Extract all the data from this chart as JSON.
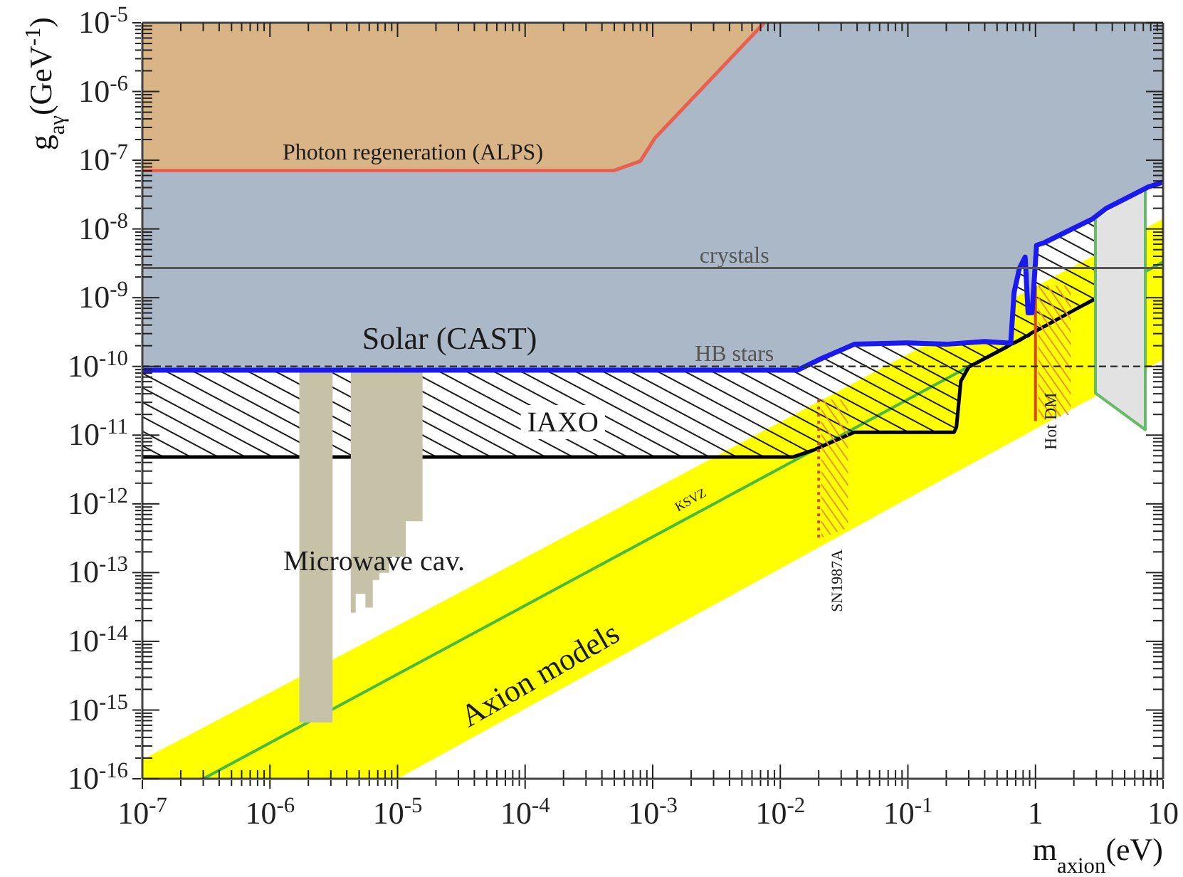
{
  "chart_data": {
    "type": "area",
    "log": "xy",
    "xlabel": "m$_{axion}$(eV)",
    "ylabel": "g$_{aγ}$(GeV$^{-1}$)",
    "xlim": [
      1e-07,
      10
    ],
    "ylim": [
      1e-16,
      1e-05
    ],
    "xticks": [
      {
        "value": 1e-07,
        "label": "10$^{-7}$"
      },
      {
        "value": 2e-07,
        "label": null
      },
      {
        "value": 3e-07,
        "label": null
      },
      {
        "value": 4e-07,
        "label": null
      },
      {
        "value": 5e-07,
        "label": null
      },
      {
        "value": 6e-07,
        "label": null
      },
      {
        "value": 7e-07,
        "label": null
      },
      {
        "value": 8e-07,
        "label": null
      },
      {
        "value": 9e-07,
        "label": null
      },
      {
        "value": 1e-06,
        "label": "10$^{-6}$"
      },
      {
        "value": 2e-06,
        "label": null
      },
      {
        "value": 3e-06,
        "label": null
      },
      {
        "value": 4e-06,
        "label": null
      },
      {
        "value": 5e-06,
        "label": null
      },
      {
        "value": 6e-06,
        "label": null
      },
      {
        "value": 7e-06,
        "label": null
      },
      {
        "value": 8e-06,
        "label": null
      },
      {
        "value": 9e-06,
        "label": null
      },
      {
        "value": 1e-05,
        "label": "10$^{-5}$"
      },
      {
        "value": 2e-05,
        "label": null
      },
      {
        "value": 3e-05,
        "label": null
      },
      {
        "value": 4e-05,
        "label": null
      },
      {
        "value": 5e-05,
        "label": null
      },
      {
        "value": 6e-05,
        "label": null
      },
      {
        "value": 7e-05,
        "label": null
      },
      {
        "value": 8e-05,
        "label": null
      },
      {
        "value": 9e-05,
        "label": null
      },
      {
        "value": 0.0001,
        "label": "10$^{-4}$"
      },
      {
        "value": 0.0002,
        "label": null
      },
      {
        "value": 0.0003,
        "label": null
      },
      {
        "value": 0.0004,
        "label": null
      },
      {
        "value": 0.0005,
        "label": null
      },
      {
        "value": 0.0006,
        "label": null
      },
      {
        "value": 0.0007,
        "label": null
      },
      {
        "value": 0.0008,
        "label": null
      },
      {
        "value": 0.0009,
        "label": null
      },
      {
        "value": 0.001,
        "label": "10$^{-3}$"
      },
      {
        "value": 0.002,
        "label": null
      },
      {
        "value": 0.003,
        "label": null
      },
      {
        "value": 0.004,
        "label": null
      },
      {
        "value": 0.005,
        "label": null
      },
      {
        "value": 0.006,
        "label": null
      },
      {
        "value": 0.007,
        "label": null
      },
      {
        "value": 0.008,
        "label": null
      },
      {
        "value": 0.009,
        "label": null
      },
      {
        "value": 0.01,
        "label": "10$^{-2}$"
      },
      {
        "value": 0.02,
        "label": null
      },
      {
        "value": 0.03,
        "label": null
      },
      {
        "value": 0.04,
        "label": null
      },
      {
        "value": 0.05,
        "label": null
      },
      {
        "value": 0.06,
        "label": null
      },
      {
        "value": 0.07,
        "label": null
      },
      {
        "value": 0.08,
        "label": null
      },
      {
        "value": 0.09,
        "label": null
      },
      {
        "value": 0.1,
        "label": "10$^{-1}$"
      },
      {
        "value": 0.2,
        "label": null
      },
      {
        "value": 0.3,
        "label": null
      },
      {
        "value": 0.4,
        "label": null
      },
      {
        "value": 0.5,
        "label": null
      },
      {
        "value": 0.6,
        "label": null
      },
      {
        "value": 0.7,
        "label": null
      },
      {
        "value": 0.8,
        "label": null
      },
      {
        "value": 0.9,
        "label": null
      },
      1,
      {
        "value": 2,
        "label": null
      },
      {
        "value": 3,
        "label": null
      },
      {
        "value": 4,
        "label": null
      },
      {
        "value": 5,
        "label": null
      },
      {
        "value": 6,
        "label": null
      },
      {
        "value": 7,
        "label": null
      },
      {
        "value": 8,
        "label": null
      },
      {
        "value": 9,
        "label": null
      },
      10
    ],
    "yticks": [
      {
        "value": 1e-16,
        "label": "10$^{-16}$"
      },
      {
        "value": 2e-16,
        "label": null
      },
      {
        "value": 3e-16,
        "label": null
      },
      {
        "value": 4e-16,
        "label": null
      },
      {
        "value": 5e-16,
        "label": null
      },
      {
        "value": 6e-16,
        "label": null
      },
      {
        "value": 7e-16,
        "label": null
      },
      {
        "value": 8e-16,
        "label": null
      },
      {
        "value": 9e-16,
        "label": null
      },
      {
        "value": 1e-15,
        "label": "10$^{-15}$"
      },
      {
        "value": 2e-15,
        "label": null
      },
      {
        "value": 3e-15,
        "label": null
      },
      {
        "value": 4e-15,
        "label": null
      },
      {
        "value": 5e-15,
        "label": null
      },
      {
        "value": 6e-15,
        "label": null
      },
      {
        "value": 7e-15,
        "label": null
      },
      {
        "value": 8e-15,
        "label": null
      },
      {
        "value": 9e-15,
        "label": null
      },
      {
        "value": 1e-14,
        "label": "10$^{-14}$"
      },
      {
        "value": 2e-14,
        "label": null
      },
      {
        "value": 3e-14,
        "label": null
      },
      {
        "value": 4e-14,
        "label": null
      },
      {
        "value": 5e-14,
        "label": null
      },
      {
        "value": 6e-14,
        "label": null
      },
      {
        "value": 7e-14,
        "label": null
      },
      {
        "value": 8e-14,
        "label": null
      },
      {
        "value": 9e-14,
        "label": null
      },
      {
        "value": 1e-13,
        "label": "10$^{-13}$"
      },
      {
        "value": 2e-13,
        "label": null
      },
      {
        "value": 3e-13,
        "label": null
      },
      {
        "value": 4e-13,
        "label": null
      },
      {
        "value": 5e-13,
        "label": null
      },
      {
        "value": 6e-13,
        "label": null
      },
      {
        "value": 7e-13,
        "label": null
      },
      {
        "value": 8e-13,
        "label": null
      },
      {
        "value": 9e-13,
        "label": null
      },
      {
        "value": 1e-12,
        "label": "10$^{-12}$"
      },
      {
        "value": 2e-12,
        "label": null
      },
      {
        "value": 3e-12,
        "label": null
      },
      {
        "value": 4e-12,
        "label": null
      },
      {
        "value": 5e-12,
        "label": null
      },
      {
        "value": 6e-12,
        "label": null
      },
      {
        "value": 7e-12,
        "label": null
      },
      {
        "value": 8e-12,
        "label": null
      },
      {
        "value": 9e-12,
        "label": null
      },
      {
        "value": 1e-11,
        "label": "10$^{-11}$"
      },
      {
        "value": 2e-11,
        "label": null
      },
      {
        "value": 3e-11,
        "label": null
      },
      {
        "value": 4e-11,
        "label": null
      },
      {
        "value": 5e-11,
        "label": null
      },
      {
        "value": 6e-11,
        "label": null
      },
      {
        "value": 7e-11,
        "label": null
      },
      {
        "value": 8e-11,
        "label": null
      },
      {
        "value": 9e-11,
        "label": null
      },
      {
        "value": 1e-10,
        "label": "10$^{-10}$"
      },
      {
        "value": 2e-10,
        "label": null
      },
      {
        "value": 3e-10,
        "label": null
      },
      {
        "value": 4e-10,
        "label": null
      },
      {
        "value": 5e-10,
        "label": null
      },
      {
        "value": 6e-10,
        "label": null
      },
      {
        "value": 7e-10,
        "label": null
      },
      {
        "value": 8e-10,
        "label": null
      },
      {
        "value": 9e-10,
        "label": null
      },
      {
        "value": 1e-09,
        "label": "10$^{-9}$"
      },
      {
        "value": 2e-09,
        "label": null
      },
      {
        "value": 3e-09,
        "label": null
      },
      {
        "value": 4e-09,
        "label": null
      },
      {
        "value": 5e-09,
        "label": null
      },
      {
        "value": 6e-09,
        "label": null
      },
      {
        "value": 7e-09,
        "label": null
      },
      {
        "value": 8e-09,
        "label": null
      },
      {
        "value": 9e-09,
        "label": null
      },
      {
        "value": 1e-08,
        "label": "10$^{-8}$"
      },
      {
        "value": 2e-08,
        "label": null
      },
      {
        "value": 3e-08,
        "label": null
      },
      {
        "value": 4e-08,
        "label": null
      },
      {
        "value": 5e-08,
        "label": null
      },
      {
        "value": 6e-08,
        "label": null
      },
      {
        "value": 7e-08,
        "label": null
      },
      {
        "value": 8e-08,
        "label": null
      },
      {
        "value": 9e-08,
        "label": null
      },
      {
        "value": 1e-07,
        "label": "10$^{-7}$"
      },
      {
        "value": 2e-07,
        "label": null
      },
      {
        "value": 3e-07,
        "label": null
      },
      {
        "value": 4e-07,
        "label": null
      },
      {
        "value": 5e-07,
        "label": null
      },
      {
        "value": 6e-07,
        "label": null
      },
      {
        "value": 7e-07,
        "label": null
      },
      {
        "value": 8e-07,
        "label": null
      },
      {
        "value": 9e-07,
        "label": null
      },
      {
        "value": 1e-06,
        "label": "10$^{-6}$"
      },
      {
        "value": 2e-06,
        "label": null
      },
      {
        "value": 3e-06,
        "label": null
      },
      {
        "value": 4e-06,
        "label": null
      },
      {
        "value": 5e-06,
        "label": null
      },
      {
        "value": 6e-06,
        "label": null
      },
      {
        "value": 7e-06,
        "label": null
      },
      {
        "value": 8e-06,
        "label": null
      },
      {
        "value": 9e-06,
        "label": null
      },
      {
        "value": 1e-05,
        "label": "10$^{-5}$"
      }
    ],
    "series": [
      {
        "color": "#ffff00",
        "x": [
          1e-07,
          1e-05,
          0.1,
          10
        ],
        "values": [
          null,
          null,
          null,
          null
        ],
        "lower": [
          1e-16,
          1e-16,
          1.2e-12,
          1.26e-10
        ],
        "upper": [
          1.9e-16,
          1.7e-14,
          1.5e-10,
          1.4e-08
        ]
      },
      {
        "type": "line",
        "color": "#44bb44",
        "x": [
          3e-07,
          10
        ],
        "values": [
          1e-16,
          3.3e-09
        ]
      },
      {
        "type": "line",
        "color": "#000000",
        "x": [
          1e-07,
          0.0125,
          0.018,
          0.038,
          0.23,
          0.24,
          0.26,
          0.3,
          0.59,
          0.64,
          0.68,
          0.75,
          0.83,
          0.875,
          0.94,
          1.02,
          1.95,
          2.8,
          2.9
        ],
        "values": [
          4.8e-12,
          4.8e-12,
          6e-12,
          1.1e-11,
          1.1e-11,
          1.3e-11,
          6.1e-11,
          9.8e-11,
          1.9e-10,
          2.1e-10,
          2.2e-10,
          2.4e-10,
          2.7e-10,
          2.8e-10,
          3.1e-10,
          3.3e-10,
          6.4e-10,
          9.2e-10,
          9.5e-10
        ],
        "lower": [
          4.8e-12,
          4.8e-12,
          6e-12,
          1.1e-11,
          1.1e-11,
          1.3e-11,
          6.1e-11,
          9.8e-11,
          1.9e-10,
          2.1e-10,
          2.2e-10,
          2.4e-10,
          2.7e-10,
          2.8e-10,
          3.1e-10,
          3.3e-10,
          6.4e-10,
          9.2e-10,
          9.5e-10
        ],
        "upper": [
          8.8e-11,
          8.8e-11,
          1.1e-10,
          2.1e-10,
          2.1e-10,
          2.1e-10,
          2.2e-10,
          2.2e-10,
          2.2e-10,
          2.2e-10,
          1.2e-09,
          2.7e-09,
          3.9e-09,
          6e-10,
          6e-10,
          5.8e-09,
          1e-08,
          1.4e-08,
          1.45e-08
        ]
      },
      {
        "color": "#e8962e",
        "x": [
          0.021,
          0.034
        ],
        "values": [
          null,
          null
        ],
        "lower": [
          3.2e-13,
          4.5e-13
        ],
        "upper": [
          3.3e-11,
          3.3e-11
        ]
      },
      {
        "color": "#e8962e",
        "x": [
          1.05,
          1.9
        ],
        "values": [
          null,
          null
        ],
        "lower": [
          1.6e-11,
          2e-11
        ],
        "upper": [
          1.5e-09,
          1.5e-09
        ]
      },
      {
        "color": "#c5c2a7",
        "x": [
          1.7e-06,
          3.1e-06
        ],
        "values": [
          null,
          null
        ],
        "lower": [
          6.6e-16,
          6.6e-16
        ],
        "upper": [
          8.8e-11,
          8.8e-11
        ]
      },
      {
        "color": "#c5c2a7",
        "x": [
          4.3e-06,
          4.7e-06,
          4.7e-06,
          5.6e-06,
          5.6e-06,
          6.4e-06,
          6.4e-06,
          7.2e-06,
          7.2e-06,
          8.6e-06,
          8.6e-06,
          1.16e-05,
          1.16e-05,
          1.57e-05
        ],
        "values": [
          null,
          null,
          null,
          null,
          null,
          null,
          null,
          null,
          null,
          null,
          null,
          null,
          null,
          null
        ],
        "lower": [
          2.6e-14,
          2.6e-14,
          4.9e-14,
          4.9e-14,
          3.1e-14,
          3.1e-14,
          7.8e-14,
          7.8e-14,
          9.9e-14,
          9.9e-14,
          1.7e-13,
          1.7e-13,
          5.6e-13,
          5.6e-13
        ],
        "upper": [
          8.8e-11,
          8.8e-11,
          8.8e-11,
          8.8e-11,
          8.8e-11,
          8.8e-11,
          8.8e-11,
          8.8e-11,
          8.8e-11,
          8.8e-11,
          8.8e-11,
          8.8e-11,
          8.8e-11,
          8.8e-11
        ]
      },
      {
        "color": "#e2e2e2",
        "x": [
          2.95,
          7.25
        ],
        "values": [
          null,
          null
        ],
        "lower": [
          4.1e-11,
          1.2e-11
        ],
        "upper": [
          1.37e-08,
          3.9e-08
        ]
      },
      {
        "color": "#abb8c7",
        "x": [
          1e-07,
          0.0005,
          0.0008,
          0.00104,
          0.0075,
          0.0136,
          0.021,
          0.038,
          0.1,
          0.2,
          0.4,
          0.59,
          0.64,
          0.68,
          0.75,
          0.83,
          0.875,
          0.94,
          1.02,
          1.17,
          2.8,
          3.6,
          7.7,
          10
        ],
        "values": [
          null,
          null,
          null,
          null,
          null,
          null,
          null,
          null,
          null,
          null,
          null,
          null,
          null,
          null,
          null,
          null,
          null,
          null,
          null,
          null,
          null,
          null,
          null,
          null
        ],
        "lower": [
          8.8e-11,
          8.8e-11,
          8.8e-11,
          8.8e-11,
          8.8e-11,
          8.8e-11,
          1.3e-10,
          2.1e-10,
          2.2e-10,
          2.1e-10,
          2.3e-10,
          2.2e-10,
          2.2e-10,
          1.2e-09,
          2.7e-09,
          3.9e-09,
          6e-10,
          6e-10,
          5.8e-09,
          6.3e-09,
          1.4e-08,
          2e-08,
          4.1e-08,
          4.8e-08
        ],
        "upper": [
          7.1e-08,
          7.1e-08,
          9.7e-08,
          2.1e-07,
          1e-05,
          1e-05,
          1e-05,
          1e-05,
          1e-05,
          1e-05,
          1e-05,
          1e-05,
          1e-05,
          1e-05,
          1e-05,
          1e-05,
          1e-05,
          1e-05,
          1e-05,
          1e-05,
          1e-05,
          1e-05,
          1e-05,
          1e-05
        ]
      },
      {
        "color": "#d8b487",
        "x": [
          1e-07,
          0.0005,
          0.0008,
          0.00104,
          0.0075
        ],
        "values": [
          null,
          null,
          null,
          null,
          null
        ],
        "lower": [
          7.1e-08,
          7.1e-08,
          9.7e-08,
          2.1e-07,
          1e-05
        ],
        "upper": [
          1e-05,
          1e-05,
          1e-05,
          1e-05,
          1e-05
        ]
      },
      {
        "type": "line",
        "color": "#66bb66",
        "x": [
          2.95,
          2.95,
          7.25,
          7.25
        ],
        "values": [
          1.37e-08,
          4.1e-11,
          1.2e-11,
          3.9e-08
        ]
      },
      {
        "type": "line",
        "color": "#e8604f",
        "x": [
          1e-07,
          0.0005,
          0.0008,
          0.00104,
          0.0075
        ],
        "values": [
          7.1e-08,
          7.1e-08,
          9.7e-08,
          2.1e-07,
          1e-05
        ]
      },
      {
        "type": "line",
        "color": "#d9451f",
        "line_style": "dotted",
        "x": [
          0.02,
          0.02
        ],
        "values": [
          3.3e-11,
          3.2e-13
        ]
      },
      {
        "type": "line",
        "color": "#e0401c",
        "x": [
          1,
          1
        ],
        "values": [
          1.5e-09,
          1.6e-11
        ]
      },
      {
        "type": "line",
        "color": "#1a1aee",
        "x": [
          1e-07,
          0.0136,
          0.021,
          0.038,
          0.1,
          0.2,
          0.4,
          0.59,
          0.64,
          0.68,
          0.75,
          0.83,
          0.875,
          0.94,
          1.02,
          1.17,
          2.8,
          3.6,
          7.7,
          10
        ],
        "values": [
          8.8e-11,
          8.8e-11,
          1.3e-10,
          2.1e-10,
          2.2e-10,
          2.1e-10,
          2.3e-10,
          2.2e-10,
          2.2e-10,
          1.2e-09,
          2.7e-09,
          3.9e-09,
          6e-10,
          6e-10,
          5.8e-09,
          6.3e-09,
          1.4e-08,
          2e-08,
          4.1e-08,
          4.8e-08
        ]
      }
    ],
    "ref_lines": [
      {
        "axis": "y",
        "value": 2.7e-09,
        "label": "crystals",
        "color": "#555555"
      },
      {
        "axis": "y",
        "value": 1e-10,
        "label": "HB stars",
        "color": "#333333",
        "line_style": "dashed"
      }
    ],
    "annotations": [
      "Photon regeneration (ALPS)",
      "Solar (CAST)",
      "IAXO",
      "Microwave cav.",
      "Axion models",
      "KSVZ",
      "SN1987A",
      "Hot DM"
    ]
  }
}
